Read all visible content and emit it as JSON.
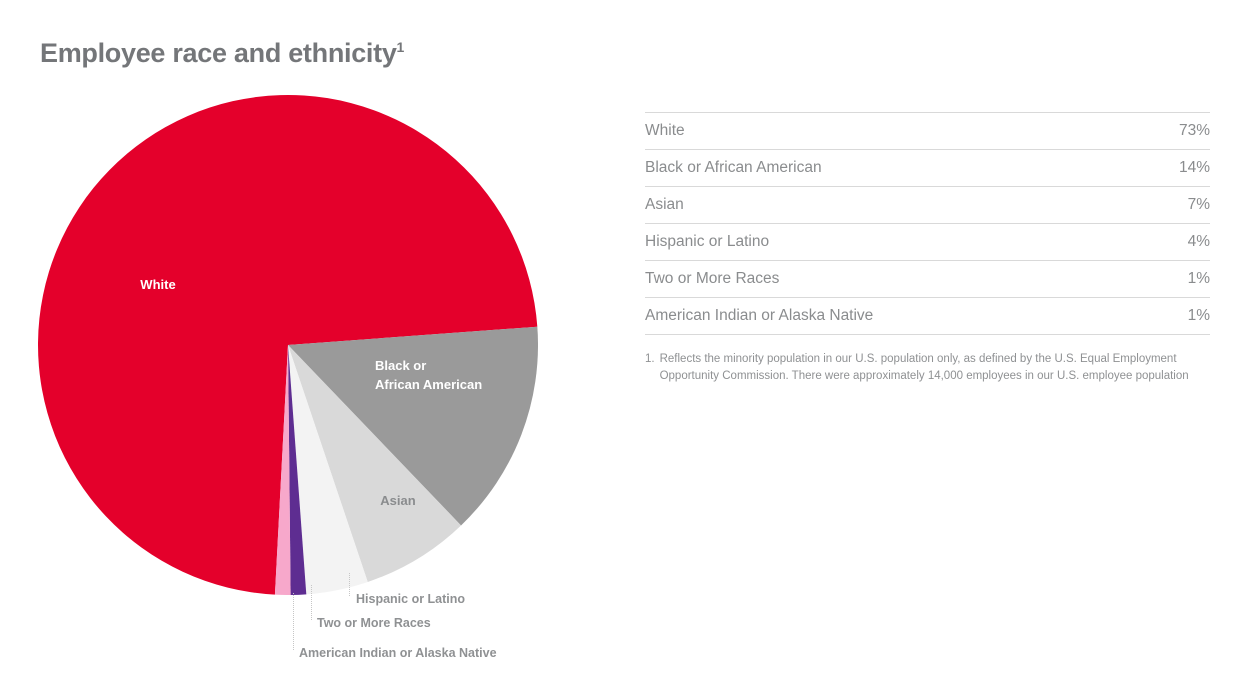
{
  "title": "Employee race and ethnicity",
  "title_superscript": "1",
  "chart_data": {
    "type": "pie",
    "title": "Employee race and ethnicity",
    "categories": [
      "White",
      "Black or African American",
      "Asian",
      "Hispanic or Latino",
      "Two or More Races",
      "American Indian or Alaska Native"
    ],
    "values": [
      73,
      14,
      7,
      4,
      1,
      1
    ],
    "unit": "%",
    "colors": [
      "#e4002b",
      "#9a9a9a",
      "#d9d9d9",
      "#f3f3f3",
      "#5e2d91",
      "#f7a8cb"
    ],
    "start_angle_deg": 183,
    "direction": "clockwise",
    "legend_position": "none",
    "slice_labels": {
      "white": "White",
      "black_line1": "Black or",
      "black_line2": "African American",
      "asian": "Asian",
      "hispanic": "Hispanic or Latino",
      "two_or_more": "Two or More Races",
      "american_indian": "American Indian or Alaska Native"
    }
  },
  "table": {
    "rows": [
      {
        "label": "White",
        "value": "73%"
      },
      {
        "label": "Black or African American",
        "value": "14%"
      },
      {
        "label": "Asian",
        "value": "7%"
      },
      {
        "label": "Hispanic or Latino",
        "value": "4%"
      },
      {
        "label": "Two or More Races",
        "value": "1%"
      },
      {
        "label": "American Indian or Alaska Native",
        "value": "1%"
      }
    ]
  },
  "footnote": {
    "number": "1.",
    "text": "Reflects the minority population in our U.S. population only, as defined by the U.S. Equal Employment Opportunity Commission. There were approximately 14,000 employees in our U.S. employee population"
  }
}
